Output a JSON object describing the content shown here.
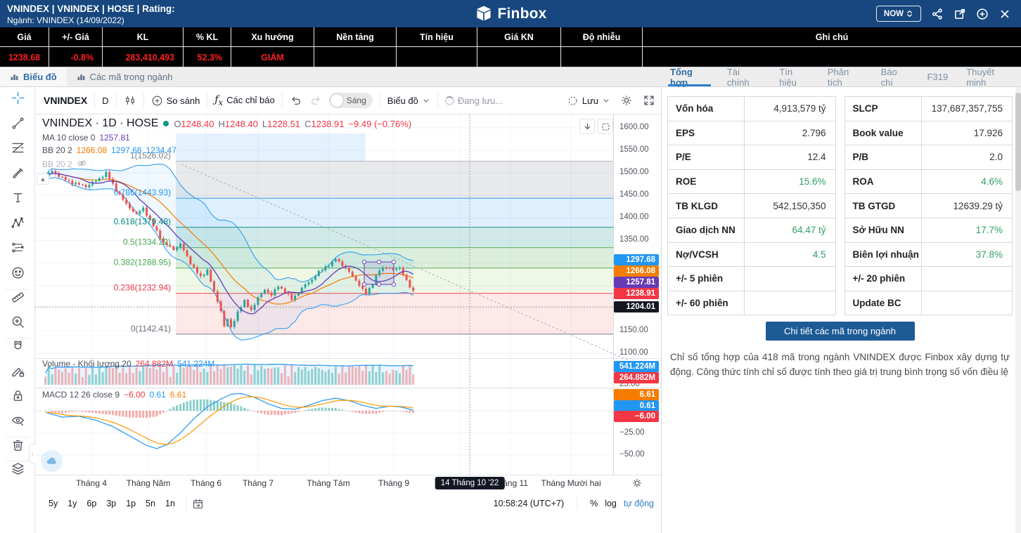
{
  "header": {
    "title": "VNINDEX | VNINDEX | HOSE | Rating:",
    "subtitle": "Ngành: VNINDEX (14/09/2022)",
    "brand": "Finbox",
    "now_button": "NOW"
  },
  "quote_table": {
    "columns": [
      "Giá",
      "+/- Giá",
      "KL",
      "% KL",
      "Xu hướng",
      "Nền tảng",
      "Tín hiệu",
      "Giá KN",
      "Độ nhiễu",
      "Ghi chú"
    ],
    "row": [
      "1238.68",
      "-0.8%",
      "283,410,493",
      "52.3%",
      "GIẢM",
      "",
      "",
      "",
      "",
      ""
    ]
  },
  "view_tabs": {
    "left": [
      {
        "label": "Biểu đồ",
        "active": true
      },
      {
        "label": "Các mã trong ngành",
        "active": false
      }
    ],
    "right": [
      {
        "label": "Tổng hợp",
        "active": true
      },
      {
        "label": "Tài chính",
        "active": false
      },
      {
        "label": "Tín hiệu",
        "active": false
      },
      {
        "label": "Phân tích",
        "active": false
      },
      {
        "label": "Báo chí",
        "active": false
      },
      {
        "label": "F319",
        "active": false
      },
      {
        "label": "Thuyết minh",
        "active": false
      }
    ]
  },
  "chart_toolbar": {
    "symbol": "VNINDEX",
    "interval": "D",
    "compare": "So sánh",
    "indicators": "Các chỉ báo",
    "theme_toggle": "Sáng",
    "chart_type": "Biểu đồ",
    "saving": "Đang lưu...",
    "save": "Lưu"
  },
  "left_toolbar": [
    "crosshair",
    "trend-line",
    "fib-retracement",
    "brush",
    "text",
    "xabcd-pattern",
    "long-position",
    "emoji",
    "ruler",
    "zoom-in",
    "magnet",
    "drawing-mode",
    "lock",
    "hide-drawings",
    "trash",
    "layers"
  ],
  "chart": {
    "legend": {
      "symbol_line": "VNINDEX · 1D · HOSE",
      "ohlc_prefixes": [
        "O",
        "H",
        "L",
        "C"
      ],
      "ohlc": {
        "o": "1248.40",
        "h": "1248.40",
        "l": "1228.51",
        "c": "1238.91",
        "change": "−9.49 (−0.76%)"
      },
      "ma_label": "MA 10 close 0",
      "ma_value": "1257.81",
      "bb_label": "BB 20 2",
      "bb_basis": "1266.08",
      "bb_upper": "1297.68",
      "bb_lower": "1234.47",
      "bb_hidden_label": "BB 20 2"
    },
    "price_axis_ticks": [
      "1600.00",
      "1550.00",
      "1500.00",
      "1450.00",
      "1400.00",
      "1350.00",
      "1150.00",
      "1100.00"
    ],
    "price_labels": [
      {
        "value": "1297.68",
        "color": "#2196f3"
      },
      {
        "value": "1266.08",
        "color": "#f57c00"
      },
      {
        "value": "1257.81",
        "color": "#673ab7"
      },
      {
        "value": "1238.91",
        "color": "#f23645"
      },
      {
        "value": "1204.01",
        "color": "#14171f"
      }
    ],
    "volume_legend": {
      "label": "Volume - Khối lượng 20",
      "current": "264.882M",
      "ma": "541.224M"
    },
    "volume_labels": [
      {
        "value": "541.224M",
        "color": "#2196f3"
      },
      {
        "value": "264.882M",
        "color": "#f23645"
      }
    ],
    "macd_legend": {
      "label": "MACD 12 26 close 9",
      "hist": "−6.00",
      "macd": "0.61",
      "signal": "6.61"
    },
    "macd_labels": [
      {
        "value": "6.61",
        "color": "#f57c00"
      },
      {
        "value": "0.61",
        "color": "#2196f3"
      },
      {
        "value": "−6.00",
        "color": "#f23645"
      }
    ],
    "macd_axis_ticks": [
      "25.00",
      "−25.00",
      "−50.00"
    ],
    "time_axis": [
      "Tháng 4",
      "Tháng Năm",
      "Tháng 6",
      "Tháng 7",
      "Tháng Tám",
      "Tháng 9",
      "Tháng 10",
      "Tháng 11",
      "Tháng Mười hai"
    ],
    "crosshair_tooltip": "14 Tháng 10 '22",
    "ranges": [
      "5y",
      "1y",
      "6p",
      "3p",
      "1p",
      "5n",
      "1n"
    ],
    "clock": "10:58:24 (UTC+7)",
    "scale_modes": {
      "percent": "%",
      "log": "log",
      "auto": "tự động"
    }
  },
  "chart_data": {
    "type": "candlestick",
    "symbol": "VNINDEX",
    "interval": "1D",
    "selected_bar": {
      "open": 1248.4,
      "high": 1248.4,
      "low": 1228.51,
      "close": 1238.91,
      "change": -9.49,
      "change_pct": -0.76
    },
    "price_axis_range": [
      1100,
      1600
    ],
    "close_anchors": [
      [
        0,
        1492
      ],
      [
        2,
        1505
      ],
      [
        5,
        1488
      ],
      [
        8,
        1478
      ],
      [
        12,
        1470
      ],
      [
        15,
        1482
      ],
      [
        18,
        1500
      ],
      [
        21,
        1462
      ],
      [
        24,
        1430
      ],
      [
        27,
        1408
      ],
      [
        29,
        1422
      ],
      [
        32,
        1382
      ],
      [
        35,
        1345
      ],
      [
        38,
        1330
      ],
      [
        40,
        1342
      ],
      [
        43,
        1300
      ],
      [
        46,
        1268
      ],
      [
        48,
        1285
      ],
      [
        50,
        1235
      ],
      [
        52,
        1195
      ],
      [
        53,
        1160
      ],
      [
        54,
        1175
      ],
      [
        55,
        1156
      ],
      [
        57,
        1192
      ],
      [
        59,
        1215
      ],
      [
        61,
        1196
      ],
      [
        63,
        1222
      ],
      [
        65,
        1242
      ],
      [
        67,
        1228
      ],
      [
        69,
        1250
      ],
      [
        71,
        1236
      ],
      [
        73,
        1220
      ],
      [
        75,
        1235
      ],
      [
        77,
        1252
      ],
      [
        79,
        1264
      ],
      [
        81,
        1280
      ],
      [
        83,
        1292
      ],
      [
        85,
        1300
      ],
      [
        86,
        1310
      ],
      [
        88,
        1296
      ],
      [
        90,
        1280
      ],
      [
        92,
        1262
      ],
      [
        94,
        1240
      ],
      [
        95,
        1232
      ],
      [
        97,
        1256
      ],
      [
        99,
        1284
      ],
      [
        101,
        1292
      ],
      [
        103,
        1284
      ],
      [
        105,
        1290
      ],
      [
        106,
        1276
      ],
      [
        107,
        1260
      ],
      [
        108,
        1246
      ],
      [
        109,
        1238.91
      ]
    ],
    "fib_levels": [
      {
        "label": "1(1526.02)",
        "value": 1526.02,
        "level": 1
      },
      {
        "label": "0.786(1443.93)",
        "value": 1443.93,
        "level": 0.786
      },
      {
        "label": "0.618(1379.48)",
        "value": 1379.48,
        "level": 0.618
      },
      {
        "label": "0.5(1334.22)",
        "value": 1334.22,
        "level": 0.5
      },
      {
        "label": "0.382(1288.95)",
        "value": 1288.95,
        "level": 0.382
      },
      {
        "label": "0.236(1232.94)",
        "value": 1232.94,
        "level": 0.236
      },
      {
        "label": "0(1142.41)",
        "value": 1142.41,
        "level": 0
      }
    ],
    "indicators": [
      {
        "name": "MA",
        "params": "10 close 0",
        "value": 1257.81
      },
      {
        "name": "BB",
        "params": "20 2",
        "basis": 1266.08,
        "upper": 1297.68,
        "lower": 1234.47
      }
    ],
    "volume": {
      "current_M": 264.882,
      "ma20_M": 541.224
    },
    "macd": {
      "params": "12 26 close 9",
      "histogram": -6.0,
      "macd": 0.61,
      "signal": 6.61,
      "macd_anchors": [
        [
          0,
          -2
        ],
        [
          5,
          -8
        ],
        [
          10,
          -7
        ],
        [
          15,
          -12
        ],
        [
          20,
          -20
        ],
        [
          25,
          -32
        ],
        [
          30,
          -44
        ],
        [
          33,
          -48
        ],
        [
          36,
          -43
        ],
        [
          40,
          -28
        ],
        [
          44,
          -10
        ],
        [
          48,
          5
        ],
        [
          52,
          15
        ],
        [
          55,
          21
        ],
        [
          58,
          22
        ],
        [
          62,
          17
        ],
        [
          66,
          9
        ],
        [
          70,
          3
        ],
        [
          74,
          2
        ],
        [
          78,
          7
        ],
        [
          82,
          13
        ],
        [
          86,
          16
        ],
        [
          90,
          13
        ],
        [
          94,
          7
        ],
        [
          98,
          3
        ],
        [
          102,
          6
        ],
        [
          105,
          5
        ],
        [
          107,
          3
        ],
        [
          109,
          0.61
        ]
      ]
    }
  },
  "stats_panel": {
    "rows": [
      {
        "l_label": "Vốn hóa",
        "l_value": "4,913,579 tỷ",
        "l_green": false,
        "r_label": "SLCP",
        "r_value": "137,687,357,755",
        "r_green": false
      },
      {
        "l_label": "EPS",
        "l_value": "2.796",
        "l_green": false,
        "r_label": "Book value",
        "r_value": "17.926",
        "r_green": false
      },
      {
        "l_label": "P/E",
        "l_value": "12.4",
        "l_green": false,
        "r_label": "P/B",
        "r_value": "2.0",
        "r_green": false
      },
      {
        "l_label": "ROE",
        "l_value": "15.6%",
        "l_green": true,
        "r_label": "ROA",
        "r_value": "4.6%",
        "r_green": true
      },
      {
        "l_label": "TB KLGD",
        "l_value": "542,150,350",
        "l_green": false,
        "r_label": "TB GTGD",
        "r_value": "12639.29 tỷ",
        "r_green": false
      },
      {
        "l_label": "Giao dịch NN",
        "l_value": "64.47 tỷ",
        "l_green": true,
        "r_label": "Sở Hữu NN",
        "r_value": "17.7%",
        "r_green": true
      },
      {
        "l_label": "Nợ/VCSH",
        "l_value": "4.5",
        "l_green": true,
        "r_label": "Biên lợi nhuận",
        "r_value": "37.8%",
        "r_green": true
      },
      {
        "l_label": "+/- 5 phiên",
        "l_value": "",
        "l_green": false,
        "r_label": "+/- 20 phiên",
        "r_value": "",
        "r_green": false
      },
      {
        "l_label": "+/- 60 phiên",
        "l_value": "",
        "l_green": false,
        "r_label": "Update BC",
        "r_value": "",
        "r_green": false
      }
    ],
    "button": "Chi tiết các mã trong ngành",
    "description": "Chỉ số tổng hợp của 418 mã trong ngành VNINDEX được Finbox xây dựng tự động. Công thức tính chỉ số được tính theo giá trị trung bình trọng số vốn điều lệ"
  }
}
